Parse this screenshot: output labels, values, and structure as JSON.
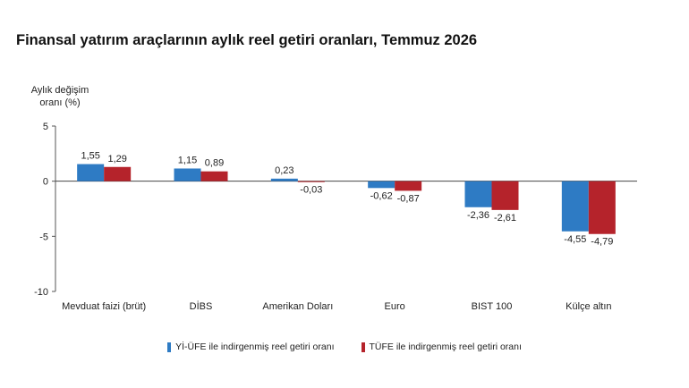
{
  "title": "Finansal yatırım araçlarının aylık reel getiri oranları, Temmuz 2026",
  "ylabel_line1": "Aylık değişim",
  "ylabel_line2": "oranı (%)",
  "colors": {
    "series1": "#2e7bc4",
    "series2": "#b5232b",
    "axis": "#555555",
    "zero": "#444444"
  },
  "chart_data": {
    "type": "bar",
    "categories": [
      "Mevduat faizi (brüt)",
      "DİBS",
      "Amerikan Doları",
      "Euro",
      "BIST 100",
      "Külçe altın"
    ],
    "series": [
      {
        "name": "Yİ-ÜFE ile indirgenmiş reel getiri oranı",
        "values": [
          1.55,
          1.15,
          0.23,
          -0.62,
          -2.36,
          -4.55
        ],
        "labels": [
          "1,55",
          "1,15",
          "0,23",
          "-0,62",
          "-2,36",
          "-4,55"
        ]
      },
      {
        "name": "TÜFE ile indirgenmiş reel getiri oranı",
        "values": [
          1.29,
          0.89,
          -0.03,
          -0.87,
          -2.61,
          -4.79
        ],
        "labels": [
          "1,29",
          "0,89",
          "-0,03",
          "-0,87",
          "-2,61",
          "-4,79"
        ]
      }
    ],
    "yticks": [
      5,
      0,
      -5,
      -10
    ],
    "ytick_labels": [
      "5",
      "0",
      "-5",
      "-10"
    ],
    "ylim": [
      -10,
      5
    ],
    "ylabel": "Aylık değişim oranı (%)",
    "legend_position": "bottom",
    "grid": false
  }
}
